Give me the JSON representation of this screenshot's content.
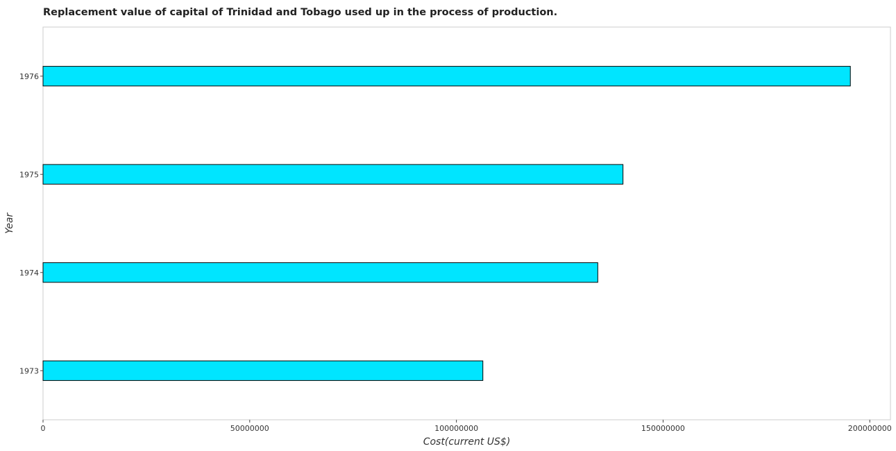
{
  "chart_data": {
    "type": "bar",
    "orientation": "horizontal",
    "title": "Replacement value of capital of Trinidad and Tobago used up in the process of production.",
    "xlabel": "Cost(current US$)",
    "ylabel": "Year",
    "categories": [
      "1973",
      "1974",
      "1975",
      "1976"
    ],
    "values": [
      106400000,
      134200000,
      140300000,
      195300000
    ],
    "xlim": [
      0,
      205000000
    ],
    "xticks": [
      0,
      50000000,
      100000000,
      150000000,
      200000000
    ],
    "xtick_labels": [
      "0",
      "50000000",
      "100000000",
      "150000000",
      "200000000"
    ],
    "bar_color": "#00e5ff",
    "grid": false,
    "legend": false
  }
}
